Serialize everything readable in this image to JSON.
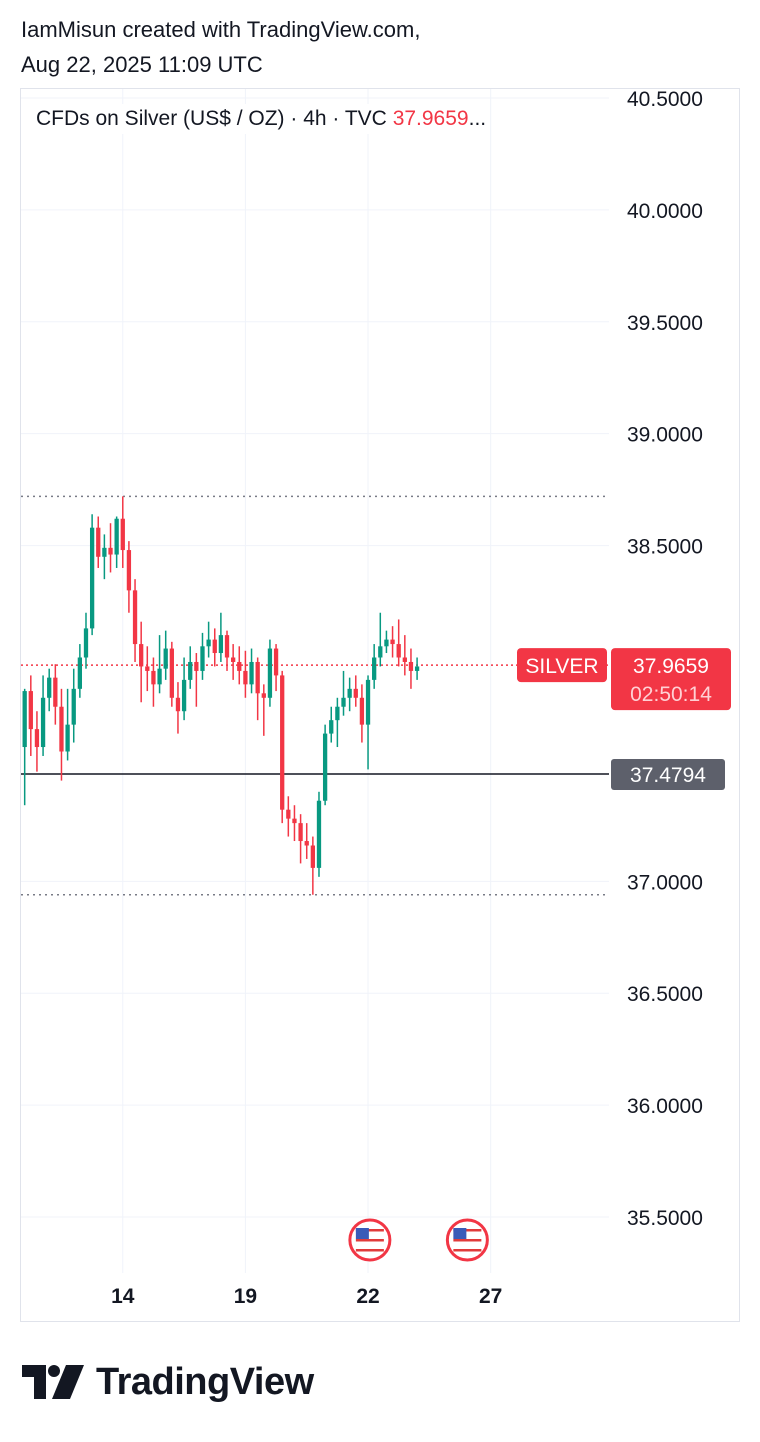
{
  "header": {
    "line1": "IamMisun created with TradingView.com,",
    "line2": "Aug 22, 2025 11:09 UTC"
  },
  "symbol": {
    "description": "CFDs on Silver (US$ / OZ) · 4h · TVC",
    "price": "37.9659",
    "ellipsis": "..."
  },
  "brand": {
    "name": "TradingView"
  },
  "colors": {
    "up": "#089981",
    "down": "#f23645",
    "grid": "#f0f3fa",
    "text": "#131722",
    "marker_gray": "#5d606b"
  },
  "chart_data": {
    "type": "candlestick",
    "interval": "4h",
    "grid": true,
    "ylim": [
      35.25,
      40.54
    ],
    "y_ticks": [
      "40.5000",
      "40.0000",
      "39.5000",
      "39.0000",
      "38.5000",
      "37.0000",
      "36.5000",
      "36.0000",
      "35.5000"
    ],
    "x_ticks": [
      {
        "label": "14",
        "index": 16
      },
      {
        "label": "19",
        "index": 36
      },
      {
        "label": "22",
        "index": 56
      },
      {
        "label": "27",
        "index": 76
      }
    ],
    "x_range": [
      -0.6,
      95.3
    ],
    "current_price": {
      "label": "SILVER",
      "value": "37.9659",
      "countdown": "02:50:14",
      "price": 37.9659
    },
    "marker_price": {
      "value": "37.4794",
      "price": 37.4794
    },
    "dotted_levels": [
      38.72,
      36.94
    ],
    "events": [
      {
        "name": "us-flag-icon",
        "index": 56.3
      },
      {
        "name": "us-flag-icon",
        "index": 72.2
      }
    ],
    "candles": [
      [
        37.6,
        37.85,
        37.34,
        37.86
      ],
      [
        37.85,
        37.68,
        37.56,
        37.92
      ],
      [
        37.68,
        37.6,
        37.49,
        37.76
      ],
      [
        37.6,
        37.82,
        37.56,
        37.92
      ],
      [
        37.82,
        37.91,
        37.76,
        37.95
      ],
      [
        37.91,
        37.78,
        37.7,
        37.97
      ],
      [
        37.78,
        37.58,
        37.45,
        37.86
      ],
      [
        37.58,
        37.7,
        37.54,
        37.86
      ],
      [
        37.7,
        37.86,
        37.62,
        37.95
      ],
      [
        37.86,
        38.0,
        37.82,
        38.06
      ],
      [
        38.0,
        38.13,
        37.95,
        38.2
      ],
      [
        38.13,
        38.58,
        38.1,
        38.64
      ],
      [
        38.58,
        38.45,
        38.4,
        38.63
      ],
      [
        38.45,
        38.49,
        38.35,
        38.55
      ],
      [
        38.49,
        38.46,
        38.38,
        38.6
      ],
      [
        38.46,
        38.62,
        38.4,
        38.63
      ],
      [
        38.62,
        38.48,
        38.4,
        38.72
      ],
      [
        38.48,
        38.3,
        38.2,
        38.52
      ],
      [
        38.3,
        38.06,
        37.98,
        38.35
      ],
      [
        38.06,
        37.96,
        37.8,
        38.16
      ],
      [
        37.96,
        37.94,
        37.85,
        38.05
      ],
      [
        37.94,
        37.88,
        37.78,
        38.0
      ],
      [
        37.88,
        37.95,
        37.84,
        38.1
      ],
      [
        37.95,
        38.04,
        37.9,
        38.12
      ],
      [
        38.04,
        37.82,
        37.78,
        38.07
      ],
      [
        37.82,
        37.76,
        37.66,
        37.89
      ],
      [
        37.76,
        37.9,
        37.72,
        38.0
      ],
      [
        37.9,
        37.98,
        37.86,
        38.05
      ],
      [
        37.98,
        37.94,
        37.78,
        38.02
      ],
      [
        37.94,
        38.05,
        37.9,
        38.11
      ],
      [
        38.05,
        38.08,
        38.0,
        38.16
      ],
      [
        38.08,
        38.02,
        37.96,
        38.13
      ],
      [
        38.02,
        38.1,
        37.98,
        38.2
      ],
      [
        38.1,
        38.0,
        37.94,
        38.12
      ],
      [
        38.0,
        37.98,
        37.9,
        38.06
      ],
      [
        37.98,
        37.94,
        37.88,
        38.05
      ],
      [
        37.94,
        37.88,
        37.82,
        38.03
      ],
      [
        37.88,
        37.98,
        37.84,
        38.04
      ],
      [
        37.98,
        37.84,
        37.72,
        38.0
      ],
      [
        37.84,
        37.82,
        37.65,
        37.88
      ],
      [
        37.82,
        38.04,
        37.78,
        38.08
      ],
      [
        38.04,
        37.92,
        37.85,
        38.06
      ],
      [
        37.92,
        37.32,
        37.26,
        37.94
      ],
      [
        37.32,
        37.28,
        37.2,
        37.38
      ],
      [
        37.28,
        37.26,
        37.18,
        37.34
      ],
      [
        37.26,
        37.18,
        37.08,
        37.3
      ],
      [
        37.18,
        37.16,
        37.1,
        37.26
      ],
      [
        37.16,
        37.06,
        36.94,
        37.2
      ],
      [
        37.06,
        37.36,
        37.02,
        37.4
      ],
      [
        37.36,
        37.66,
        37.34,
        37.7
      ],
      [
        37.66,
        37.72,
        37.62,
        37.78
      ],
      [
        37.72,
        37.78,
        37.6,
        37.82
      ],
      [
        37.78,
        37.82,
        37.74,
        37.94
      ],
      [
        37.82,
        37.86,
        37.76,
        37.91
      ],
      [
        37.86,
        37.82,
        37.78,
        37.92
      ],
      [
        37.82,
        37.7,
        37.62,
        37.88
      ],
      [
        37.7,
        37.9,
        37.5,
        37.92
      ],
      [
        37.9,
        38.0,
        37.86,
        38.06
      ],
      [
        38.0,
        38.05,
        37.96,
        38.2
      ],
      [
        38.05,
        38.08,
        38.02,
        38.12
      ],
      [
        38.08,
        38.06,
        38.0,
        38.14
      ],
      [
        38.06,
        38.0,
        37.96,
        38.17
      ],
      [
        38.0,
        37.98,
        37.92,
        38.1
      ],
      [
        37.98,
        37.94,
        37.86,
        38.04
      ],
      [
        37.94,
        37.96,
        37.9,
        38.0
      ]
    ]
  }
}
